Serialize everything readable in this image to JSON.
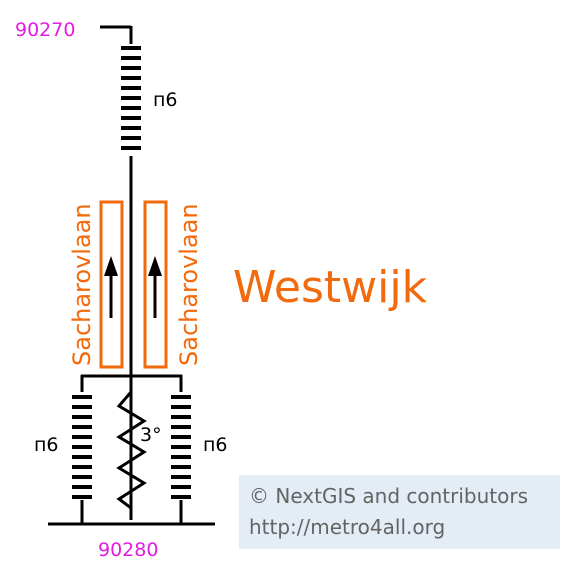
{
  "station": {
    "name": "Westwijk"
  },
  "codes": {
    "top": "90270",
    "bottom": "90280"
  },
  "platform_labels": {
    "left": "Sacharovlaan",
    "right": "Sacharovlaan"
  },
  "stairs_labels": {
    "top": "п6",
    "bottom_left": "п6",
    "bottom_right": "п6"
  },
  "ramp_label": "3°",
  "credits": {
    "line1": "© NextGIS and contributors",
    "line2": "http://metro4all.org"
  },
  "colors": {
    "accent_orange": "#f26a0b",
    "code_magenta": "#e31be3",
    "credit_background": "#e4ecf5",
    "credit_text": "#646464"
  }
}
